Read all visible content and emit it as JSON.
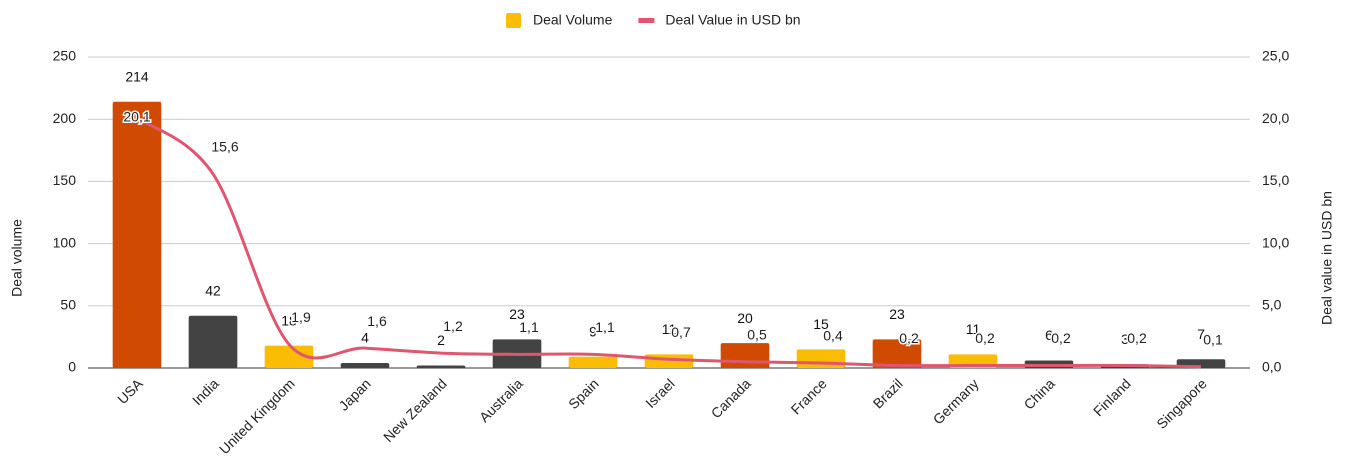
{
  "chart_data": {
    "type": "bar",
    "legend": "top",
    "grid": true,
    "ylabel": "Deal volume",
    "y2label": "Deal value in USD bn",
    "categories": [
      "USA",
      "India",
      "United Kingdom",
      "Japan",
      "New Zealand",
      "Australia",
      "Spain",
      "Israel",
      "Canada",
      "France",
      "Brazil",
      "Germany",
      "China",
      "Finland",
      "Singapore"
    ],
    "series": [
      {
        "name": "Deal Volume",
        "type": "bar",
        "color": "#fbbc04",
        "colors": [
          "#d04a02",
          "#434343",
          "#fbbc04",
          "#434343",
          "#434343",
          "#434343",
          "#fbbc04",
          "#fbbc04",
          "#d04a02",
          "#fbbc04",
          "#d04a02",
          "#fbbc04",
          "#434343",
          "#434343",
          "#434343"
        ],
        "values": [
          214,
          42,
          18,
          4,
          2,
          23,
          9,
          11,
          20,
          15,
          23,
          11,
          6,
          3,
          7
        ]
      },
      {
        "name": "Deal Value in USD bn",
        "type": "line",
        "axis": "y2",
        "color": "#e0566f",
        "values": [
          20.1,
          15.6,
          1.9,
          1.6,
          1.2,
          1.1,
          1.1,
          0.7,
          0.5,
          0.4,
          0.2,
          0.2,
          0.2,
          0.2,
          0.1
        ],
        "value_labels": [
          "20,1",
          "15,6",
          "1,9",
          "1,6",
          "1,2",
          "1,1",
          "1,1",
          "0,7",
          "0,5",
          "0,4",
          "0,2",
          "0,2",
          "0,2",
          "0,2",
          "0,1"
        ]
      }
    ],
    "ylim": [
      0,
      250
    ],
    "yticks": [
      0,
      50,
      100,
      150,
      200,
      250
    ],
    "y2lim": [
      0,
      25
    ],
    "y2ticks": [
      {
        "value": 0,
        "label": "0,0"
      },
      {
        "value": 5,
        "label": "5,0"
      },
      {
        "value": 10,
        "label": "10,0"
      },
      {
        "value": 15,
        "label": "15,0"
      },
      {
        "value": 20,
        "label": "20,0"
      },
      {
        "value": 25,
        "label": "25,0"
      }
    ]
  }
}
